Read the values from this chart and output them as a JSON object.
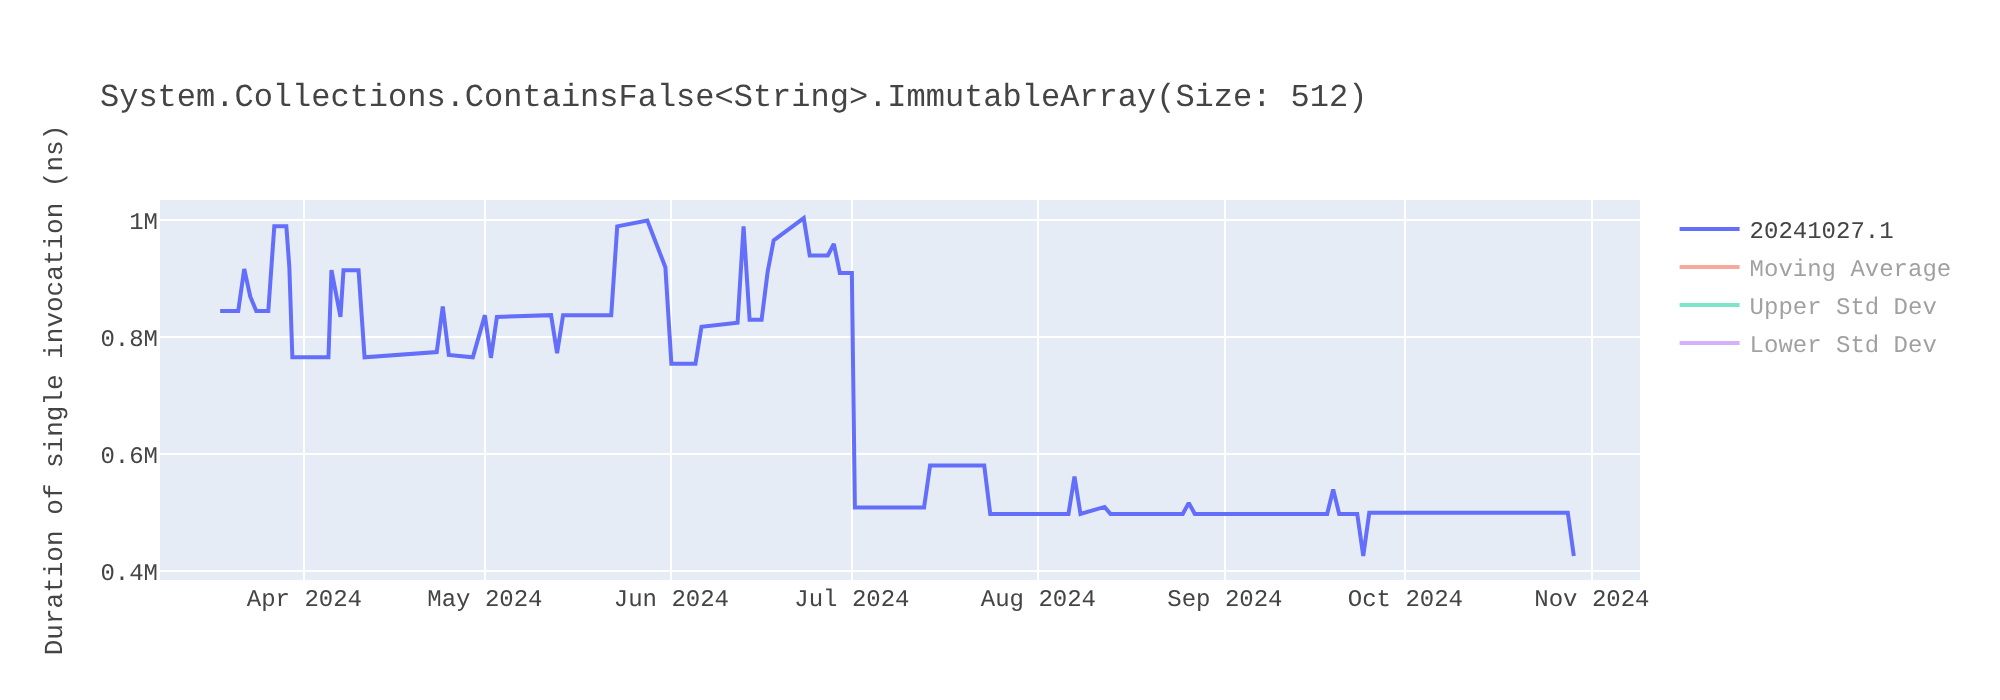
{
  "chart_data": {
    "type": "line",
    "title": "System.Collections.ContainsFalse<String>.ImmutableArray(Size: 512)",
    "ylabel": "Duration of single invocation (ns)",
    "x": [
      "2024-03-18",
      "2024-03-21",
      "2024-03-22",
      "2024-03-23",
      "2024-03-24",
      "2024-03-25",
      "2024-03-26",
      "2024-03-27",
      "2024-03-29",
      "2024-03-29T12:00",
      "2024-03-30",
      "2024-04-05",
      "2024-04-05T12:00",
      "2024-04-07",
      "2024-04-07T12:00",
      "2024-04-10",
      "2024-04-11",
      "2024-04-23",
      "2024-04-24",
      "2024-04-25",
      "2024-04-29",
      "2024-05-01",
      "2024-05-02",
      "2024-05-03",
      "2024-05-12",
      "2024-05-13",
      "2024-05-14",
      "2024-05-22",
      "2024-05-23",
      "2024-05-28",
      "2024-05-31",
      "2024-06-01",
      "2024-06-05",
      "2024-06-06",
      "2024-06-12",
      "2024-06-13",
      "2024-06-14",
      "2024-06-16",
      "2024-06-17",
      "2024-06-18",
      "2024-06-23",
      "2024-06-24",
      "2024-06-27",
      "2024-06-28",
      "2024-06-29",
      "2024-07-01",
      "2024-07-01T12:00",
      "2024-07-13",
      "2024-07-14",
      "2024-07-23",
      "2024-07-24",
      "2024-08-06",
      "2024-08-07",
      "2024-08-08",
      "2024-08-12",
      "2024-08-13",
      "2024-08-25",
      "2024-08-26",
      "2024-08-27",
      "2024-09-18",
      "2024-09-19",
      "2024-09-20",
      "2024-09-23",
      "2024-09-24",
      "2024-09-25",
      "2024-10-28",
      "2024-10-29"
    ],
    "series": [
      {
        "name": "20241027.1",
        "color": "#636efa",
        "values": [
          845000,
          845000,
          917000,
          870000,
          845000,
          845000,
          845000,
          990000,
          990000,
          920000,
          766000,
          766000,
          915000,
          835000,
          915000,
          915000,
          766000,
          775000,
          853000,
          770000,
          766000,
          838000,
          765000,
          835000,
          838000,
          773000,
          838000,
          838000,
          990000,
          1000000,
          920000,
          755000,
          755000,
          818000,
          825000,
          990000,
          830000,
          830000,
          912000,
          966000,
          1004000,
          940000,
          940000,
          960000,
          910000,
          910000,
          509000,
          509000,
          581000,
          581000,
          498000,
          498000,
          562000,
          498000,
          510000,
          498000,
          498000,
          517000,
          498000,
          498000,
          540000,
          498000,
          498000,
          426000,
          500000,
          500000,
          426000
        ]
      },
      {
        "name": "Moving Average",
        "color": "#ef553b",
        "values": [
          null,
          null,
          null,
          null,
          null,
          null,
          null,
          null,
          null,
          null,
          null,
          null,
          null,
          null,
          null,
          null,
          null,
          null,
          null,
          null,
          null,
          null,
          null,
          null,
          null,
          null,
          null,
          null,
          null,
          null,
          null,
          null,
          null,
          null,
          null,
          null,
          null,
          null,
          null,
          null,
          null,
          null,
          null,
          null,
          null,
          null,
          null,
          null,
          null,
          null,
          null,
          null,
          null,
          null,
          null,
          null,
          null,
          null,
          null,
          null,
          null,
          null,
          null,
          null,
          null,
          null,
          null
        ]
      },
      {
        "name": "Upper Std Dev",
        "color": "#00cc96",
        "values": [
          null,
          null,
          null,
          null,
          null,
          null,
          null,
          null,
          null,
          null,
          null,
          null,
          null,
          null,
          null,
          null,
          null,
          null,
          null,
          null,
          null,
          null,
          null,
          null,
          null,
          null,
          null,
          null,
          null,
          null,
          null,
          null,
          null,
          null,
          null,
          null,
          null,
          null,
          null,
          null,
          null,
          null,
          null,
          null,
          null,
          null,
          null,
          null,
          null,
          null,
          null,
          null,
          null,
          null,
          null,
          null,
          null,
          null,
          null,
          null,
          null,
          null,
          null,
          null,
          null,
          null,
          null
        ]
      },
      {
        "name": "Lower Std Dev",
        "color": "#ab63fa",
        "values": [
          null,
          null,
          null,
          null,
          null,
          null,
          null,
          null,
          null,
          null,
          null,
          null,
          null,
          null,
          null,
          null,
          null,
          null,
          null,
          null,
          null,
          null,
          null,
          null,
          null,
          null,
          null,
          null,
          null,
          null,
          null,
          null,
          null,
          null,
          null,
          null,
          null,
          null,
          null,
          null,
          null,
          null,
          null,
          null,
          null,
          null,
          null,
          null,
          null,
          null,
          null,
          null,
          null,
          null,
          null,
          null,
          null,
          null,
          null,
          null,
          null,
          null,
          null,
          null,
          null,
          null,
          null
        ]
      }
    ],
    "xlim": [
      "2024-03-08",
      "2024-11-09"
    ],
    "xticks": [
      {
        "value": "2024-04-01",
        "label": "Apr 2024"
      },
      {
        "value": "2024-05-01",
        "label": "May 2024"
      },
      {
        "value": "2024-06-01",
        "label": "Jun 2024"
      },
      {
        "value": "2024-07-01",
        "label": "Jul 2024"
      },
      {
        "value": "2024-08-01",
        "label": "Aug 2024"
      },
      {
        "value": "2024-09-01",
        "label": "Sep 2024"
      },
      {
        "value": "2024-10-01",
        "label": "Oct 2024"
      },
      {
        "value": "2024-11-01",
        "label": "Nov 2024"
      }
    ],
    "ylim": [
      385000,
      1035000
    ],
    "yticks": [
      {
        "value": 400000,
        "label": "0.4M"
      },
      {
        "value": 600000,
        "label": "0.6M"
      },
      {
        "value": 800000,
        "label": "0.8M"
      },
      {
        "value": 1000000,
        "label": "1M"
      }
    ],
    "grid": true,
    "legend": "right",
    "marker": "none",
    "line_style": "solid"
  }
}
